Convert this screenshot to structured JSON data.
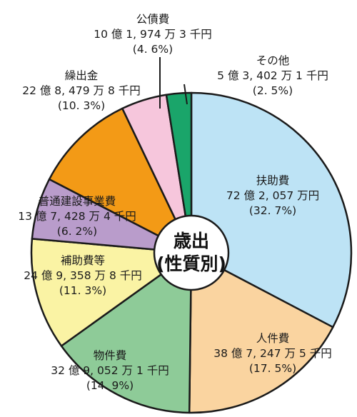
{
  "chart_data": {
    "type": "pie",
    "title": "",
    "center_label": [
      "歳出",
      "(性質別)"
    ],
    "slices": [
      {
        "name": "扶助費",
        "amount": "72 億 2, 057 万円",
        "percent_label": "(32. 7%)",
        "value": 32.7,
        "color": "#bde3f5"
      },
      {
        "name": "人件費",
        "amount": "38 億 7, 247 万 5 千円",
        "percent_label": "(17. 5%)",
        "value": 17.5,
        "color": "#fad4a0"
      },
      {
        "name": "物件費",
        "amount": "32 億 9, 052 万 1 千円",
        "percent_label": "(14. 9%)",
        "value": 14.9,
        "color": "#8ecb98"
      },
      {
        "name": "補助費等",
        "amount": "24 億 9, 358 万 8 千円",
        "percent_label": "(11. 3%)",
        "value": 11.3,
        "color": "#faf3a4"
      },
      {
        "name": "普通建設事業費",
        "amount": "13 億 7, 428 万 4 千円",
        "percent_label": "(6. 2%)",
        "value": 6.2,
        "color": "#b99ccb"
      },
      {
        "name": "繰出金",
        "amount": "22 億 8, 479 万 8 千円",
        "percent_label": "(10. 3%)",
        "value": 10.3,
        "color": "#f39a16"
      },
      {
        "name": "公債費",
        "amount": "10 億 1, 974 万 3 千円",
        "percent_label": "(4. 6%)",
        "value": 4.6,
        "color": "#f6c6dc"
      },
      {
        "name": "その他",
        "amount": "5 億 3, 402 万 1 千円",
        "percent_label": "(2. 5%)",
        "value": 2.5,
        "color": "#1aa56a"
      }
    ]
  }
}
